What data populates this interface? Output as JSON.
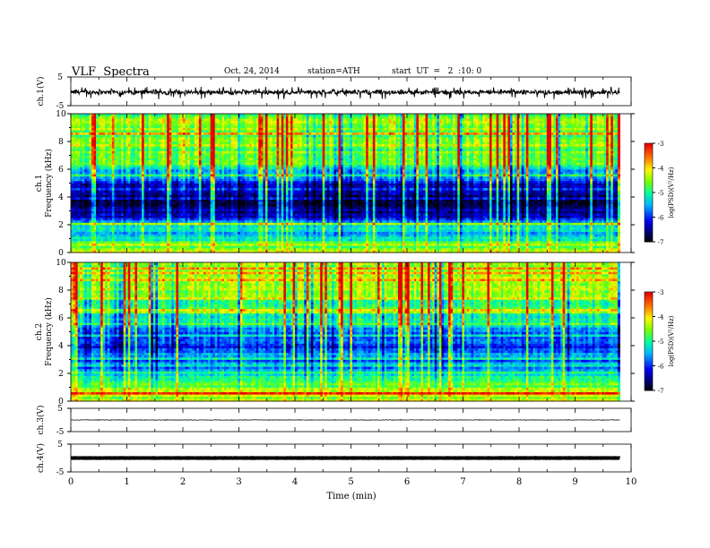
{
  "header": {
    "title": "VLF  Spectra",
    "date": "Oct. 24, 2014",
    "station": "station=ATH",
    "start": "start  UT  =   2  :10: 0"
  },
  "chart_data": [
    {
      "type": "line",
      "panel": "ch.1 waveform",
      "ylabel": "ch.1(V)",
      "ylim": [
        -5,
        5
      ],
      "yticks": [
        "5",
        "-5"
      ],
      "xlim": [
        0,
        10
      ],
      "x_data_end": 9.8,
      "series": [
        {
          "values_summary": {
            "baseline": -0.3,
            "noise_amplitude": 1.0,
            "spike_min": -2.8
          }
        }
      ],
      "color": "#000000"
    },
    {
      "type": "heatmap",
      "panel": "ch.1 spectrogram",
      "ylabel_lines": [
        "ch.1",
        "Frequency  (kHz)"
      ],
      "ylim": [
        0,
        10
      ],
      "yticks": [
        "0",
        "2",
        "4",
        "6",
        "8",
        "10"
      ],
      "xlim": [
        0,
        10
      ],
      "x_data_end": 9.8,
      "profile": {
        "freq_khz": [
          0,
          0.3,
          0.6,
          1.0,
          1.5,
          2.0,
          2.5,
          3.0,
          4.0,
          5.0,
          5.5,
          6.0,
          7.0,
          8.0,
          9.0,
          10.0
        ],
        "log_psd": [
          -3.8,
          -5.6,
          -3.9,
          -5.2,
          -5.4,
          -5.1,
          -6.2,
          -6.4,
          -6.6,
          -6.2,
          -5.6,
          -5.2,
          -4.9,
          -4.6,
          -4.5,
          -4.5
        ]
      },
      "colorbar": {
        "label": "log(PSD)(V²/Hz)",
        "range": [
          -7,
          -3
        ],
        "ticks": [
          "-3",
          "-4",
          "-5",
          "-6",
          "-7"
        ]
      }
    },
    {
      "type": "heatmap",
      "panel": "ch.2 spectrogram",
      "ylabel_lines": [
        "ch.2",
        "Frequency  (kHz)"
      ],
      "ylim": [
        0,
        10
      ],
      "yticks": [
        "0",
        "2",
        "4",
        "6",
        "8",
        "10"
      ],
      "xlim": [
        0,
        10
      ],
      "x_data_end": 9.8,
      "profile": {
        "freq_khz": [
          0,
          0.3,
          0.6,
          1.0,
          1.5,
          2.0,
          2.5,
          3.0,
          4.0,
          5.0,
          5.5,
          6.0,
          7.0,
          8.0,
          9.0,
          10.0
        ],
        "log_psd": [
          -4.2,
          -4.6,
          -3.8,
          -4.7,
          -5.0,
          -5.0,
          -5.6,
          -5.8,
          -6.0,
          -5.7,
          -5.4,
          -5.1,
          -4.8,
          -4.5,
          -4.3,
          -4.3
        ]
      },
      "colorbar": {
        "label": "log(PSD)(V²/Hz)",
        "range": [
          -7,
          -3
        ],
        "ticks": [
          "-3",
          "-4",
          "-5",
          "-6",
          "-7"
        ]
      }
    },
    {
      "type": "line",
      "panel": "ch.3 waveform",
      "ylabel": "ch.3(V)",
      "ylim": [
        -5,
        5
      ],
      "yticks": [
        "5",
        "-5"
      ],
      "xlim": [
        0,
        10
      ],
      "x_data_end": 9.8,
      "series": [
        {
          "values_summary": {
            "baseline": 0.0,
            "noise_amplitude": 0.15
          }
        }
      ],
      "color": "#000000"
    },
    {
      "type": "line",
      "panel": "ch.4 waveform",
      "ylabel": "ch.4(V)",
      "ylim": [
        -5,
        5
      ],
      "yticks": [
        "5",
        "-5"
      ],
      "xlim": [
        0,
        10
      ],
      "x_data_end": 9.8,
      "series": [
        {
          "values_summary": {
            "baseline": 0.0,
            "noise_amplitude": 0.05,
            "thick": true
          }
        }
      ],
      "color": "#000000"
    }
  ],
  "x_axis": {
    "label": "Time  (min)",
    "ticks": [
      "0",
      "1",
      "2",
      "3",
      "4",
      "5",
      "6",
      "7",
      "8",
      "9",
      "10"
    ]
  }
}
